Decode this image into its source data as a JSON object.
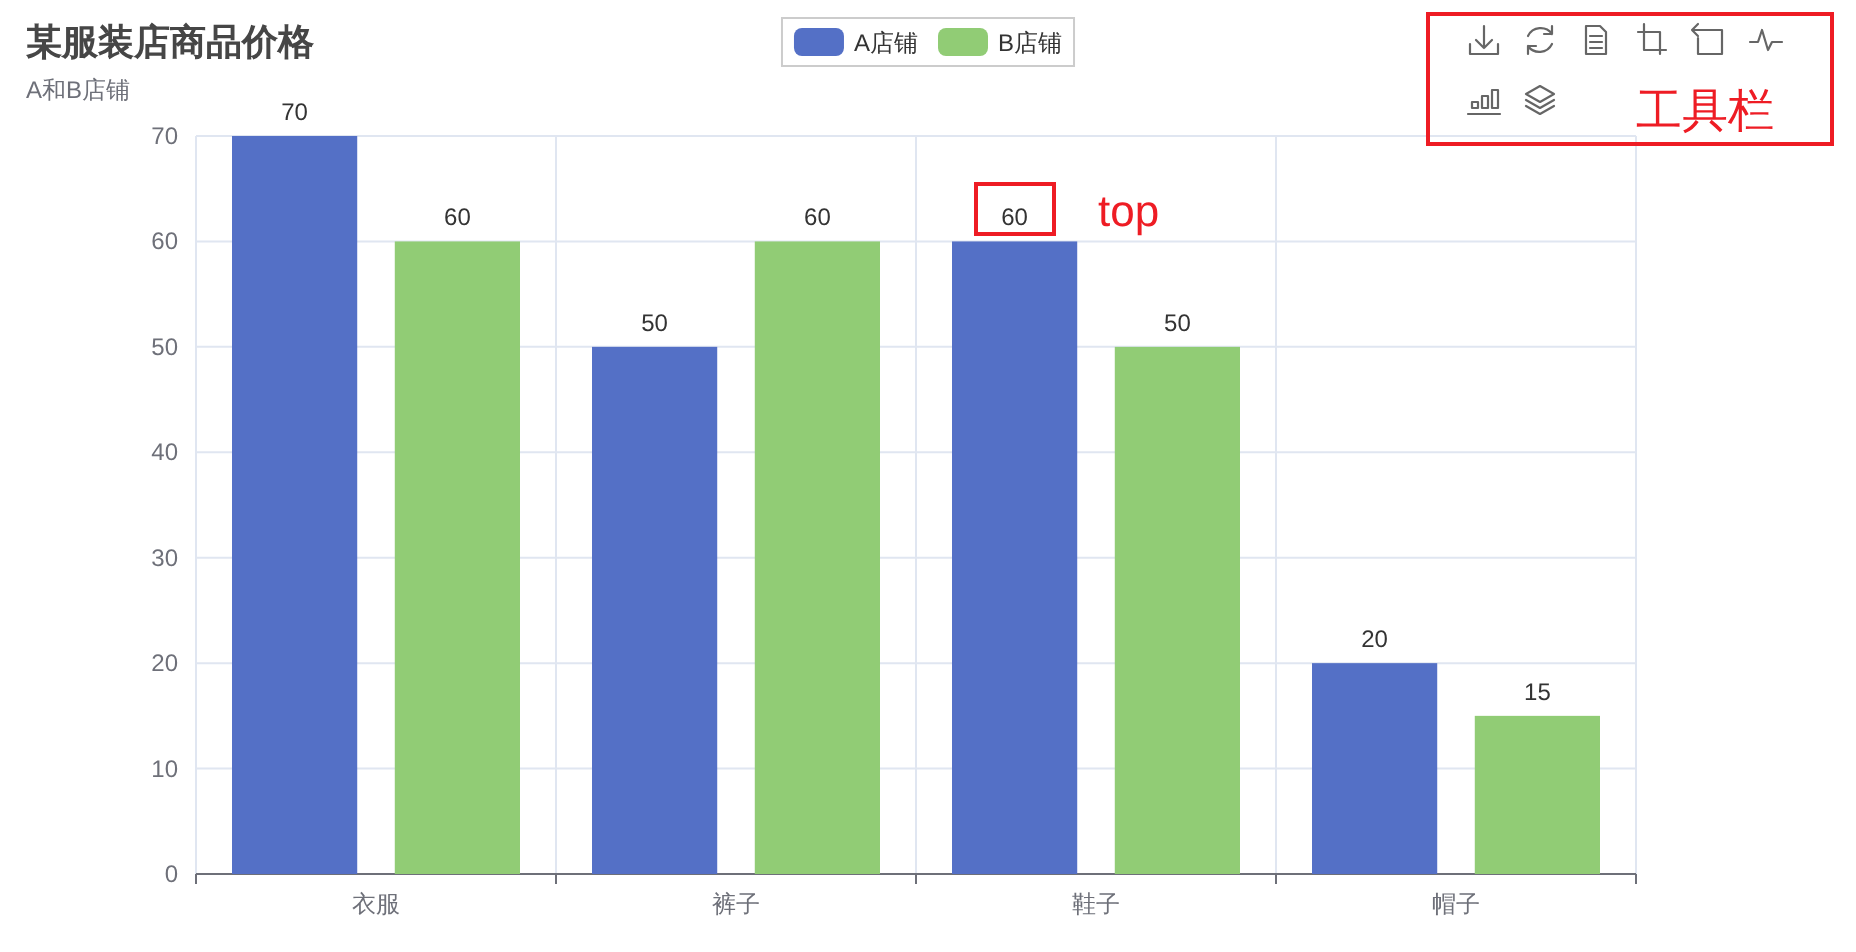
{
  "chart_data": {
    "type": "bar",
    "title": "某服装店商品价格",
    "subtitle": "A和B店铺",
    "categories": [
      "衣服",
      "裤子",
      "鞋子",
      "帽子"
    ],
    "series": [
      {
        "name": "A店铺",
        "color": "#5470c6",
        "values": [
          70,
          50,
          60,
          20
        ]
      },
      {
        "name": "B店铺",
        "color": "#91cc75",
        "values": [
          60,
          60,
          50,
          15
        ]
      }
    ],
    "ylim": [
      0,
      70
    ],
    "yticks": [
      0,
      10,
      20,
      30,
      40,
      50,
      60,
      70
    ],
    "grid": true,
    "legend": "top",
    "data_labels": true,
    "annotations": [
      "工具栏",
      "top"
    ]
  }
}
